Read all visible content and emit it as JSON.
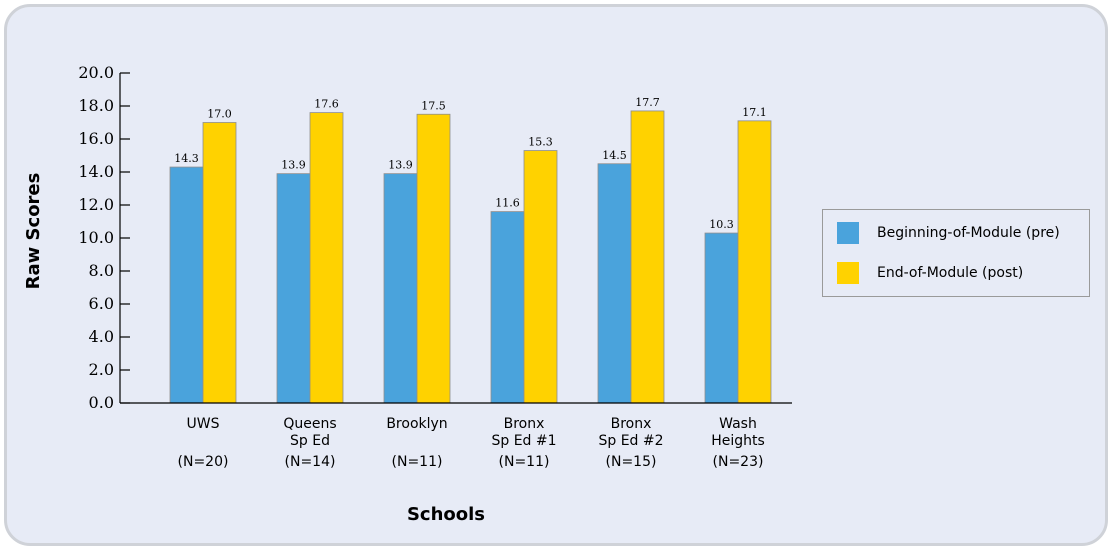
{
  "chart_data": {
    "type": "bar",
    "xlabel": "Schools",
    "ylabel": "Raw Scores",
    "ylim": [
      0,
      20
    ],
    "yticks": [
      "0.0",
      "2.0",
      "4.0",
      "6.0",
      "8.0",
      "10.0",
      "12.0",
      "14.0",
      "16.0",
      "18.0",
      "20.0"
    ],
    "categories": [
      {
        "lines": [
          "UWS",
          "",
          "(N=20)"
        ]
      },
      {
        "lines": [
          "Queens",
          "Sp Ed",
          "(N=14)"
        ]
      },
      {
        "lines": [
          "Brooklyn",
          "",
          "(N=11)"
        ]
      },
      {
        "lines": [
          "Bronx",
          "Sp Ed #1",
          "(N=11)"
        ]
      },
      {
        "lines": [
          "Bronx",
          "Sp Ed #2",
          "(N=15)"
        ]
      },
      {
        "lines": [
          "Wash",
          "Heights",
          "(N=23)"
        ]
      }
    ],
    "series": [
      {
        "name": "Beginning-of-Module (pre)",
        "color": "#4aa3dc",
        "values": [
          14.3,
          13.9,
          13.9,
          11.6,
          14.5,
          10.3
        ],
        "labels": [
          "14.3",
          "13.9",
          "13.9",
          "11.6",
          "14.5",
          "10.3"
        ]
      },
      {
        "name": "End-of-Module (post)",
        "color": "#ffd200",
        "values": [
          17.0,
          17.6,
          17.5,
          15.3,
          17.7,
          17.1
        ],
        "labels": [
          "17.0",
          "17.6",
          "17.5",
          "15.3",
          "17.7",
          "17.1"
        ]
      }
    ],
    "grid": false,
    "legend_position": "right"
  }
}
